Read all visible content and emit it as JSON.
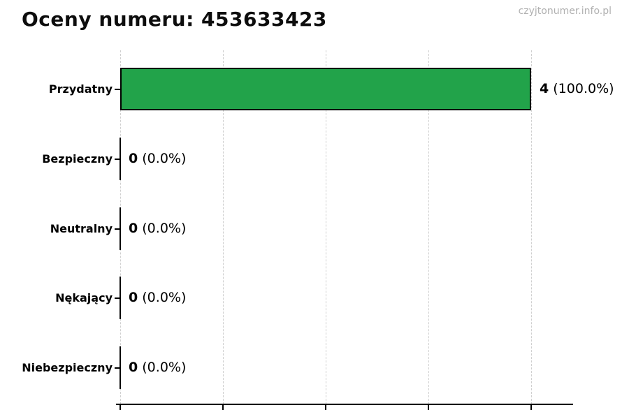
{
  "header": {
    "title": "Oceny numeru: 453633423",
    "watermark": "czyjtonumer.info.pl"
  },
  "colors": {
    "bar_fill": "#22a34a",
    "bar_border": "#000000",
    "grid": "#cfcfcf",
    "axis": "#000000",
    "title_text": "#0d0d0d",
    "watermark_text": "#b0b0b0"
  },
  "chart_data": {
    "type": "bar",
    "orientation": "horizontal",
    "title": "Oceny numeru: 453633423",
    "xlabel": "",
    "ylabel": "",
    "categories": [
      "Przydatny",
      "Bezpieczny",
      "Neutralny",
      "Nękający",
      "Niebezpieczny"
    ],
    "values": [
      4,
      0,
      0,
      0,
      0
    ],
    "percent_labels": [
      "100.0%",
      "0.0%",
      "0.0%",
      "0.0%",
      "0.0%"
    ],
    "value_label_format": "{value} ({percent})",
    "xlim": [
      0,
      4.4
    ],
    "x_ticks": [
      0,
      1,
      2,
      3,
      4
    ],
    "x_tick_labels_visible": false,
    "grid": "vertical-dashed",
    "legend": "none",
    "bar_color": "#22a34a"
  }
}
